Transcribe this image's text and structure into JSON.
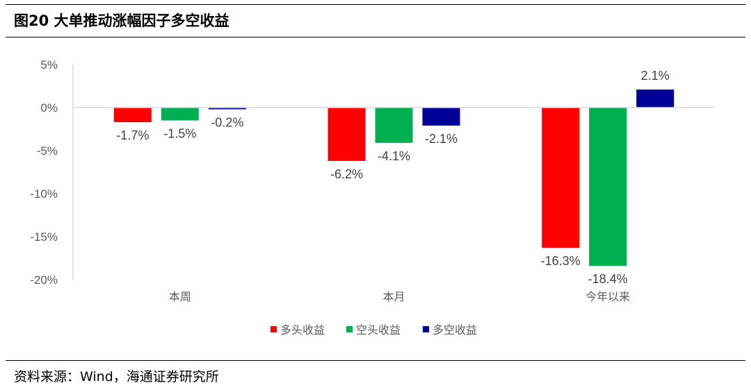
{
  "header": {
    "title": "图20 大单推动涨幅因子多空收益"
  },
  "footer": {
    "source": "资料来源：Wind，海通证券研究所"
  },
  "chart_data": {
    "type": "bar",
    "title": "",
    "categories": [
      "本周",
      "本月",
      "今年以来"
    ],
    "series": [
      {
        "name": "多头收益",
        "color": "#FF0000",
        "values": [
          -1.7,
          -6.2,
          -16.3
        ],
        "labels": [
          "-1.7%",
          "-6.2%",
          "-16.3%"
        ]
      },
      {
        "name": "空头收益",
        "color": "#00B050",
        "values": [
          -1.5,
          -4.1,
          -18.4
        ],
        "labels": [
          "-1.5%",
          "-4.1%",
          "-18.4%"
        ]
      },
      {
        "name": "多空收益",
        "color": "#000099",
        "values": [
          -0.2,
          -2.1,
          2.1
        ],
        "labels": [
          "-0.2%",
          "-2.1%",
          "2.1%"
        ]
      }
    ],
    "y_ticks": [
      {
        "value": 5,
        "label": "5%"
      },
      {
        "value": 0,
        "label": "0%"
      },
      {
        "value": -5,
        "label": "-5%"
      },
      {
        "value": -10,
        "label": "-10%"
      },
      {
        "value": -15,
        "label": "-15%"
      },
      {
        "value": -20,
        "label": "-20%"
      }
    ],
    "ylim": [
      -20,
      5
    ],
    "grid": false,
    "legend": "bottom-center"
  }
}
